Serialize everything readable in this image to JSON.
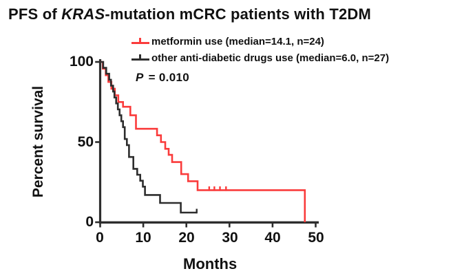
{
  "title": {
    "prefix": "PFS of ",
    "italic_segment": "KRAS",
    "suffix": "-mutation mCRC patients with T2DM"
  },
  "legend": [
    {
      "label": "metformin use (median=14.1, n=24)",
      "color": "#fa3b3b"
    },
    {
      "label": "other anti-diabetic drugs use (median=6.0, n=27)",
      "color": "#2d2d2d"
    }
  ],
  "pvalue": {
    "p": "P",
    "rest": " = 0.010"
  },
  "axes": {
    "xlabel": "Months",
    "ylabel": "Percent survival",
    "x_ticks": [
      "0",
      "10",
      "20",
      "30",
      "40",
      "50"
    ],
    "y_ticks": [
      "100",
      "50",
      "0"
    ]
  },
  "colors": {
    "axis": "#2d2d2d",
    "metformin": "#fa3b3b",
    "other": "#2d2d2d"
  },
  "chart_data": {
    "type": "line",
    "subtype": "kaplan-meier-step",
    "title": "PFS of KRAS-mutation mCRC patients with T2DM",
    "xlabel": "Months",
    "ylabel": "Percent survival",
    "xlim": [
      0,
      50
    ],
    "ylim": [
      0,
      100
    ],
    "xticks": [
      0,
      10,
      20,
      30,
      40,
      50
    ],
    "yticks": [
      0,
      50,
      100
    ],
    "grid": false,
    "legend_position": "top-inside",
    "pvalue": "P = 0.010",
    "series": [
      {
        "id": "metformin",
        "name": "metformin use",
        "median": 14.1,
        "n": 24,
        "color": "#fa3b3b",
        "steps": [
          [
            0,
            100
          ],
          [
            0.6,
            95.8
          ],
          [
            1.3,
            91.7
          ],
          [
            1.9,
            87.5
          ],
          [
            2.6,
            83.3
          ],
          [
            3.4,
            79.2
          ],
          [
            4.2,
            75.0
          ],
          [
            5.3,
            72.0
          ],
          [
            7.0,
            66.7
          ],
          [
            8.3,
            58.3
          ],
          [
            13.2,
            54.2
          ],
          [
            14.1,
            50.0
          ],
          [
            15.1,
            45.8
          ],
          [
            15.9,
            42.0
          ],
          [
            16.7,
            37.5
          ],
          [
            18.8,
            30.0
          ],
          [
            20.4,
            25.6
          ],
          [
            22.6,
            20.0
          ]
        ],
        "end_month": 47.5,
        "drops_to_zero": true,
        "censor_marks": [
          25.3,
          26.5,
          27.8,
          29.2
        ]
      },
      {
        "id": "other",
        "name": "other anti-diabetic drugs use",
        "median": 6.0,
        "n": 27,
        "color": "#2d2d2d",
        "steps": [
          [
            0,
            100
          ],
          [
            0.7,
            96.3
          ],
          [
            1.4,
            92.6
          ],
          [
            2.1,
            88.9
          ],
          [
            2.5,
            85.2
          ],
          [
            3.0,
            81.5
          ],
          [
            3.3,
            77.8
          ],
          [
            3.7,
            74.1
          ],
          [
            4.1,
            70.4
          ],
          [
            4.5,
            66.7
          ],
          [
            4.9,
            63.0
          ],
          [
            5.3,
            59.3
          ],
          [
            5.7,
            51.9
          ],
          [
            6.2,
            48.1
          ],
          [
            6.7,
            40.7
          ],
          [
            7.7,
            33.3
          ],
          [
            8.6,
            29.6
          ],
          [
            9.3,
            25.9
          ],
          [
            9.9,
            22.2
          ],
          [
            10.4,
            17.0
          ],
          [
            13.9,
            12.0
          ],
          [
            18.7,
            6.0
          ]
        ],
        "end_month": 22.4,
        "drops_to_zero": false,
        "censor_marks": [
          22.4
        ]
      }
    ]
  }
}
